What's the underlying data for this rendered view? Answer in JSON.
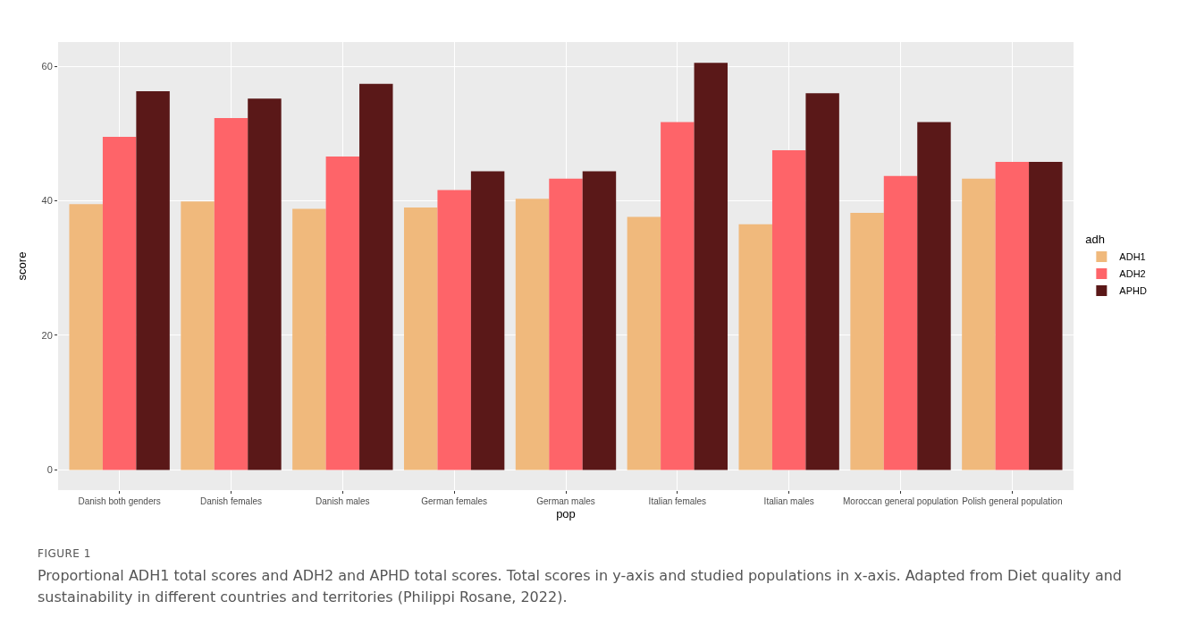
{
  "chart_data": {
    "type": "bar",
    "xlabel": "pop",
    "ylabel": "score",
    "legend_title": "adh",
    "categories": [
      "Danish both genders",
      "Danish females",
      "Danish males",
      "German females",
      "German males",
      "Italian females",
      "Italian males",
      "Moroccan general population",
      "Polish general population"
    ],
    "series": [
      {
        "name": "ADH1",
        "color": "#f0b97c",
        "values": [
          39.5,
          39.9,
          38.8,
          39.0,
          40.3,
          37.6,
          36.5,
          38.2,
          43.3
        ]
      },
      {
        "name": "ADH2",
        "color": "#fe6469",
        "values": [
          49.5,
          52.3,
          46.6,
          41.6,
          43.3,
          51.7,
          47.5,
          43.7,
          45.8
        ]
      },
      {
        "name": "APHD",
        "color": "#5a1818",
        "values": [
          56.3,
          55.2,
          57.4,
          44.4,
          44.4,
          60.5,
          56.0,
          51.7,
          45.8
        ]
      }
    ],
    "ylim": [
      -3,
      63.6
    ],
    "yticks": [
      0,
      20,
      40,
      60
    ],
    "grid": true,
    "legend": "right",
    "annotations": [
      "FIGURE 1",
      "Proportional ADH1 total scores and ADH2 and APHD total scores. Total scores in y-axis and studied populations in x-axis. Adapted from Diet quality and sustainability in different countries and territories (Philippi Rosane, 2022)."
    ]
  }
}
